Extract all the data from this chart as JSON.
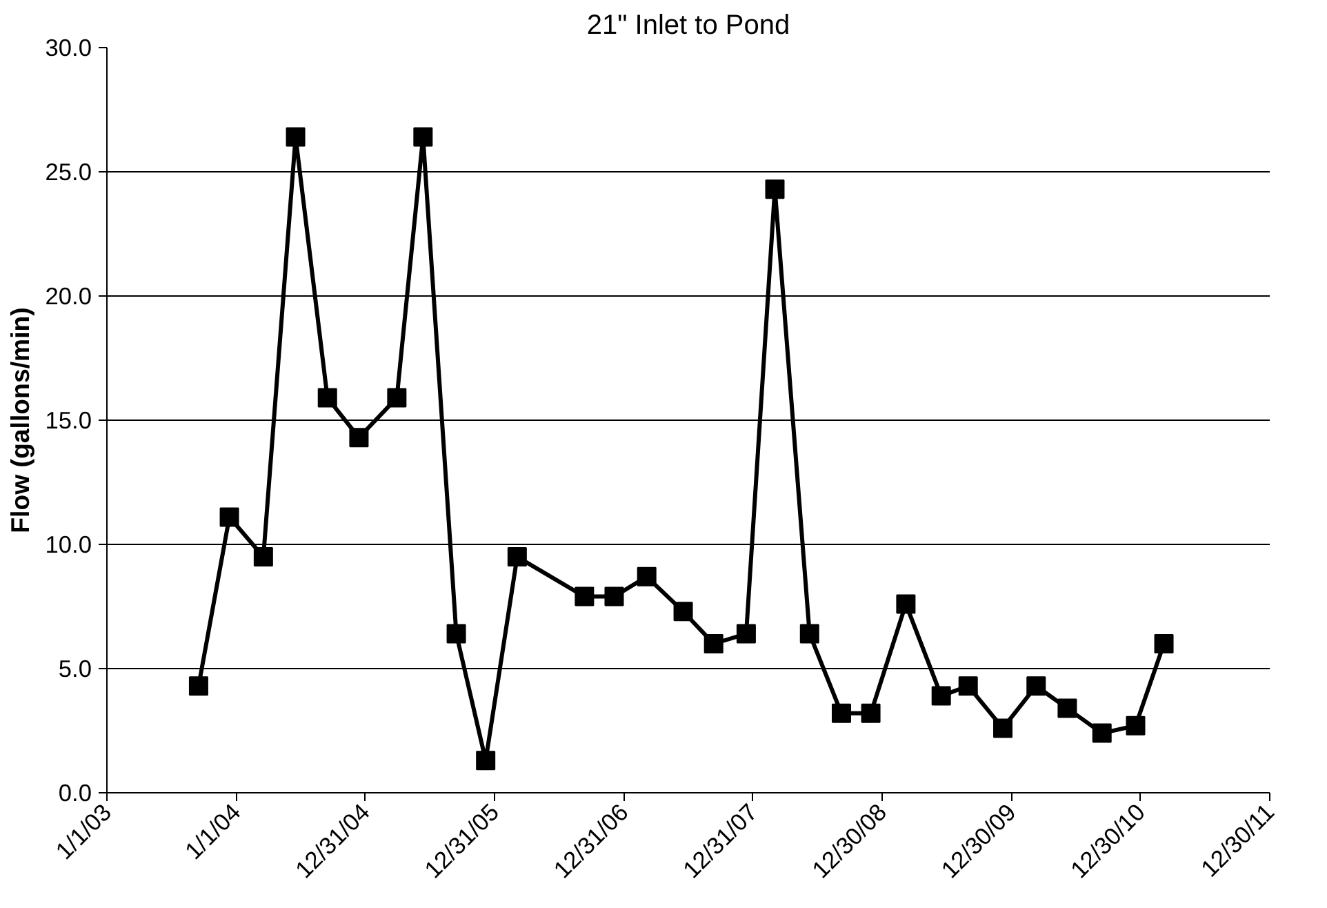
{
  "chart_data": {
    "type": "line",
    "title": "21\" Inlet to Pond",
    "ylabel": "Flow (gallons/min)",
    "x": [
      "2003-09-17",
      "2003-12-13",
      "2004-03-18",
      "2004-06-17",
      "2004-09-15",
      "2004-12-13",
      "2005-03-30",
      "2005-06-12",
      "2005-09-14",
      "2005-12-06",
      "2006-03-05",
      "2006-09-11",
      "2006-12-04",
      "2007-03-06",
      "2007-06-17",
      "2007-09-11",
      "2007-12-12",
      "2008-03-02",
      "2008-06-08",
      "2008-09-06",
      "2008-11-28",
      "2009-03-07",
      "2009-06-15",
      "2009-08-30",
      "2009-12-06",
      "2010-03-10",
      "2010-06-06",
      "2010-09-12",
      "2010-12-16",
      "2011-03-06"
    ],
    "series": [
      {
        "color": "#000000",
        "values": [
          4.3,
          11.1,
          9.5,
          26.4,
          15.9,
          14.3,
          15.9,
          26.4,
          6.4,
          1.3,
          9.5,
          7.9,
          7.9,
          8.7,
          7.3,
          6.0,
          6.4,
          24.3,
          6.4,
          3.2,
          3.2,
          7.6,
          3.9,
          4.3,
          2.6,
          4.3,
          3.4,
          2.4,
          2.7,
          6.0
        ]
      }
    ],
    "xlim": [
      "2003-01-01",
      "2011-12-30"
    ],
    "xticks": [
      {
        "value": "2003-01-01",
        "label": "1/1/03"
      },
      {
        "value": "2004-01-01",
        "label": "1/1/04"
      },
      {
        "value": "2004-12-31",
        "label": "12/31/04"
      },
      {
        "value": "2005-12-31",
        "label": "12/31/05"
      },
      {
        "value": "2006-12-31",
        "label": "12/31/06"
      },
      {
        "value": "2007-12-31",
        "label": "12/31/07"
      },
      {
        "value": "2008-12-30",
        "label": "12/30/08"
      },
      {
        "value": "2009-12-30",
        "label": "12/30/09"
      },
      {
        "value": "2010-12-30",
        "label": "12/30/10"
      },
      {
        "value": "2011-12-30",
        "label": "12/30/11"
      }
    ],
    "ylim": [
      0,
      30
    ],
    "yticks": [
      {
        "value": 0,
        "label": "0.0"
      },
      {
        "value": 5,
        "label": "5.0"
      },
      {
        "value": 10,
        "label": "10.0"
      },
      {
        "value": 15,
        "label": "15.0"
      },
      {
        "value": 20,
        "label": "20.0"
      },
      {
        "value": 25,
        "label": "25.0"
      },
      {
        "value": 30,
        "label": "30.0"
      }
    ],
    "grid": "y",
    "marker": "square",
    "line_style": "solid"
  }
}
